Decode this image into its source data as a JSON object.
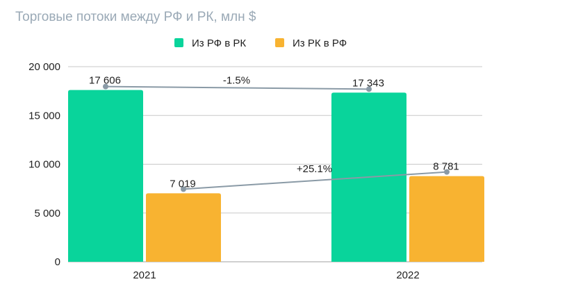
{
  "chart_data": {
    "type": "bar",
    "title": "Торговые потоки между РФ и РК, млн $",
    "categories": [
      "2021",
      "2022"
    ],
    "series": [
      {
        "name": "Из РФ в РК",
        "values": [
          17606,
          17343
        ],
        "labels": [
          "17 606",
          "17 343"
        ],
        "color": "#09d49b"
      },
      {
        "name": "Из РК в РФ",
        "values": [
          7019,
          8781
        ],
        "labels": [
          "7 019",
          "8 781"
        ],
        "color": "#f8b331"
      }
    ],
    "ylim": [
      0,
      20000
    ],
    "yticks": [
      0,
      5000,
      10000,
      15000,
      20000
    ],
    "ytick_labels": [
      "0",
      "5 000",
      "10 000",
      "15 000",
      "20 000"
    ],
    "grid": true,
    "legend_position": "top",
    "trend_lines": [
      {
        "series": "Из РФ в РК",
        "change_label": "-1.5%"
      },
      {
        "series": "Из РК в РФ",
        "change_label": "+25.1%"
      }
    ],
    "trend_color": "#8a9aa6"
  }
}
